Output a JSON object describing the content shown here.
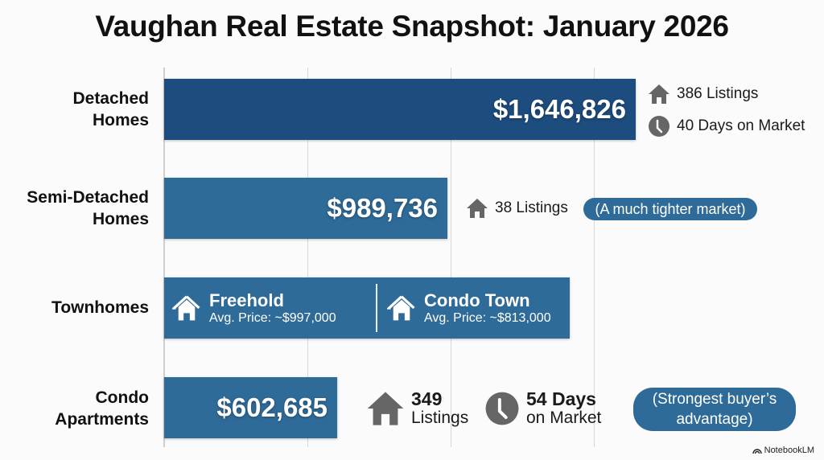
{
  "title": "Vaughan Real Estate Snapshot: January 2026",
  "colors": {
    "bar_dark": "#1d4c7e",
    "bar": "#2f6b98",
    "icon": "#666666"
  },
  "chart_data": {
    "type": "bar",
    "orientation": "horizontal",
    "title": "Vaughan Real Estate Snapshot: January 2026",
    "categories": [
      "Detached Homes",
      "Semi-Detached Homes",
      "Townhomes",
      "Condo Apartments"
    ],
    "values": [
      1646826,
      989736,
      null,
      602685
    ],
    "value_labels": [
      "$1,646,826",
      "$989,736",
      "",
      "$602,685"
    ],
    "grid": true,
    "gridline_step": 500000
  },
  "rows": {
    "detached": {
      "label_1": "Detached",
      "label_2": "Homes",
      "price": "$1,646,826",
      "listings": "386 Listings",
      "days": "40 Days on Market"
    },
    "semi": {
      "label_1": "Semi-Detached",
      "label_2": "Homes",
      "price": "$989,736",
      "listings": "38 Listings",
      "note": "(A much tighter market)"
    },
    "town": {
      "label_1": "Townhomes",
      "freehold_title": "Freehold",
      "freehold_price": "Avg. Price: ~$997,000",
      "condo_title": "Condo Town",
      "condo_price": "Avg. Price: ~$813,000"
    },
    "condo": {
      "label_1": "Condo",
      "label_2": "Apartments",
      "price": "$602,685",
      "listings_num": "349",
      "listings_word": "Listings",
      "days_num": "54 Days",
      "days_word": "on Market",
      "note_1": "(Strongest buyer’s",
      "note_2": "advantage)"
    }
  },
  "brand": "NotebookLM"
}
